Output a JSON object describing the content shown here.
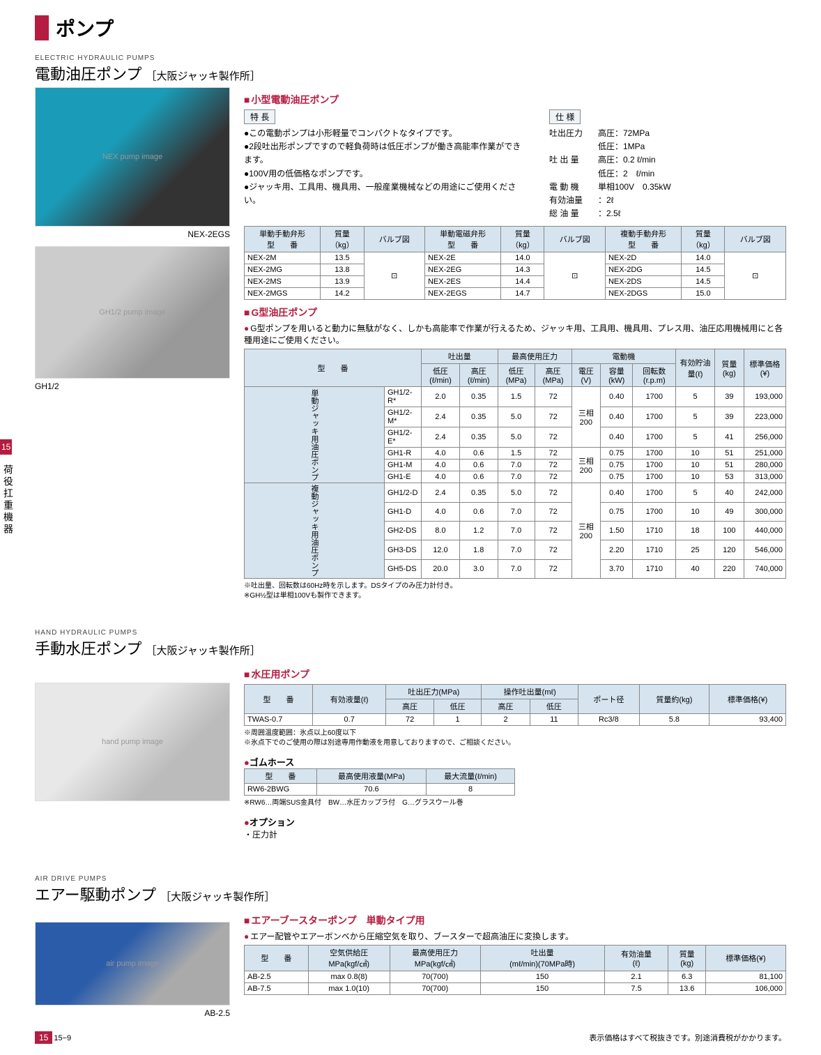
{
  "sideTab": "15",
  "sideLabel": "荷役扛重機器",
  "header": "ポンプ",
  "footer": {
    "page": "15−9",
    "note": "表示価格はすべて税抜きです。別途消費税がかかります。"
  },
  "sections": {
    "electric": {
      "sub": "ELECTRIC HYDRAULIC PUMPS",
      "title": "電動油圧ポンプ",
      "mfr": "［大阪ジャッキ製作所］",
      "img1cap": "NEX-2EGS",
      "img2cap": "GH1/2",
      "small": {
        "hdr": "小型電動油圧ポンプ",
        "featLabel": "特 長",
        "features": [
          "この電動ポンプは小形軽量でコンパクトなタイプです。",
          "2段吐出形ポンプですので軽負荷時は低圧ポンプが働き高能率作業ができます。",
          "100V用の低価格なポンプです。",
          "ジャッキ用、工具用、機具用、一般産業機械などの用途にご使用ください。"
        ],
        "specLabel": "仕 様",
        "specs": [
          {
            "k": "吐出圧力",
            "v": "高圧：72MPa"
          },
          {
            "k": "",
            "v": "低圧：1MPa"
          },
          {
            "k": "吐 出 量",
            "v": "高圧：0.2 ℓ/min"
          },
          {
            "k": "",
            "v": "低圧：2　ℓ/min"
          },
          {
            "k": "電 動 機",
            "v": "単相100V　0.35kW"
          },
          {
            "k": "有効油量",
            "v": "：2ℓ"
          },
          {
            "k": "総 油 量",
            "v": "：2.5ℓ"
          }
        ],
        "tableHeaders": [
          [
            "単動手動弁形",
            "質量",
            "バルブ図",
            "単動電磁弁形",
            "質量",
            "バルブ図",
            "複動手動弁形",
            "質量",
            "バルブ図"
          ],
          [
            "型　　番",
            "（kg）",
            "",
            "型　　番",
            "（kg）",
            "",
            "型　　番",
            "（kg）",
            ""
          ]
        ],
        "tableRows": [
          [
            "NEX-2M",
            "13.5",
            "v1",
            "NEX-2E",
            "14.0",
            "v2",
            "NEX-2D",
            "14.0",
            "v3"
          ],
          [
            "NEX-2MG",
            "13.8",
            "",
            "NEX-2EG",
            "14.3",
            "",
            "NEX-2DG",
            "14.5",
            ""
          ],
          [
            "NEX-2MS",
            "13.9",
            "",
            "NEX-2ES",
            "14.4",
            "",
            "NEX-2DS",
            "14.5",
            ""
          ],
          [
            "NEX-2MGS",
            "14.2",
            "",
            "NEX-2EGS",
            "14.7",
            "",
            "NEX-2DGS",
            "15.0",
            ""
          ]
        ]
      },
      "gtype": {
        "hdr": "G型油圧ポンプ",
        "desc": "G型ポンプを用いると動力に無駄がなく、しかも高能率で作業が行えるため、ジャッキ用、工具用、機具用、プレス用、油圧応用機械用にと各種用途にご使用ください。",
        "headers1": [
          "型　　番",
          "吐出量",
          "最高使用圧力",
          "電動機",
          "有効貯油量(ℓ)",
          "質量(kg)",
          "標準価格(¥)"
        ],
        "headers2": [
          "低圧(ℓ/min)",
          "高圧(ℓ/min)",
          "低圧(MPa)",
          "高圧(MPa)",
          "電圧(V)",
          "容量(kW)",
          "回転数(r.p.m)"
        ],
        "groups": [
          {
            "label": "単動ジャッキ用油圧ポンプ",
            "rows": [
              [
                "GH1/2-R*",
                "2.0",
                "0.35",
                "1.5",
                "72",
                "三相200",
                "0.40",
                "1700",
                "5",
                "39",
                "193,000"
              ],
              [
                "GH1/2-M*",
                "2.4",
                "0.35",
                "5.0",
                "72",
                "",
                "0.40",
                "1700",
                "5",
                "39",
                "223,000"
              ],
              [
                "GH1/2-E*",
                "2.4",
                "0.35",
                "5.0",
                "72",
                "",
                "0.40",
                "1700",
                "5",
                "41",
                "256,000"
              ],
              [
                "GH1-R",
                "4.0",
                "0.6",
                "1.5",
                "72",
                "三相200",
                "0.75",
                "1700",
                "10",
                "51",
                "251,000"
              ],
              [
                "GH1-M",
                "4.0",
                "0.6",
                "7.0",
                "72",
                "",
                "0.75",
                "1700",
                "10",
                "51",
                "280,000"
              ],
              [
                "GH1-E",
                "4.0",
                "0.6",
                "7.0",
                "72",
                "",
                "0.75",
                "1700",
                "10",
                "53",
                "313,000"
              ]
            ]
          },
          {
            "label": "複動ジャッキ用油圧ポンプ",
            "rows": [
              [
                "GH1/2-D",
                "2.4",
                "0.35",
                "5.0",
                "72",
                "三相200",
                "0.40",
                "1700",
                "5",
                "40",
                "242,000"
              ],
              [
                "GH1-D",
                "4.0",
                "0.6",
                "7.0",
                "72",
                "",
                "0.75",
                "1700",
                "10",
                "49",
                "300,000"
              ],
              [
                "GH2-DS",
                "8.0",
                "1.2",
                "7.0",
                "72",
                "",
                "1.50",
                "1710",
                "18",
                "100",
                "440,000"
              ],
              [
                "GH3-DS",
                "12.0",
                "1.8",
                "7.0",
                "72",
                "",
                "2.20",
                "1710",
                "25",
                "120",
                "546,000"
              ],
              [
                "GH5-DS",
                "20.0",
                "3.0",
                "7.0",
                "72",
                "",
                "3.70",
                "1710",
                "40",
                "220",
                "740,000"
              ]
            ]
          }
        ],
        "notes": [
          "吐出量、回転数は60Hz時を示します。DSタイプのみ圧力計付き。",
          "GH½型は単相100Vも製作できます。"
        ]
      }
    },
    "hand": {
      "sub": "HAND HYDRAULIC PUMPS",
      "title": "手動水圧ポンプ",
      "mfr": "［大阪ジャッキ製作所］",
      "water": {
        "hdr": "水圧用ポンプ",
        "headers": [
          "型　　番",
          "有効液量(ℓ)",
          "吐出圧力(MPa)",
          "操作吐出量(mℓ)",
          "ポート径",
          "質量約(kg)",
          "標準価格(¥)"
        ],
        "sub": [
          "",
          "",
          "高圧",
          "低圧",
          "高圧",
          "低圧",
          "",
          "",
          ""
        ],
        "row": [
          "TWAS-0.7",
          "0.7",
          "72",
          "1",
          "2",
          "11",
          "Rc3/8",
          "5.8",
          "93,400"
        ],
        "notes": [
          "周囲温度範囲：氷点以上60度以下",
          "氷点下でのご使用の際は別途専用作動液を用意しておりますので、ご相談ください。"
        ]
      },
      "hose": {
        "hdr": "ゴムホース",
        "headers": [
          "型　　番",
          "最高使用液量(MPa)",
          "最大流量(ℓ/min)"
        ],
        "row": [
          "RW6-2BWG",
          "70.6",
          "8"
        ],
        "note": "RW6…両端SUS金具付　BW…水圧カップラ付　G…グラスウール巻"
      },
      "option": {
        "hdr": "オプション",
        "items": [
          "・圧力計"
        ]
      }
    },
    "air": {
      "sub": "AIR DRIVE PUMPS",
      "title": "エアー駆動ポンプ",
      "mfr": "［大阪ジャッキ製作所］",
      "imgcap": "AB-2.5",
      "booster": {
        "hdr": "エアーブースターポンプ　単動タイプ用",
        "desc": "エアー配管やエアーボンベから圧縮空気を取り、ブースターで超高油圧に変換します。",
        "headers": [
          "型　　番",
          "空気供給圧\nMPa(kgf/㎠)",
          "最高使用圧力\nMPa(kgf/㎠)",
          "吐出量\n(mℓ/min)(70MPa時)",
          "有効油量\n(ℓ)",
          "質量\n(kg)",
          "標準価格(¥)"
        ],
        "rows": [
          [
            "AB-2.5",
            "max 0.8(8)",
            "70(700)",
            "150",
            "2.1",
            "6.3",
            "81,100"
          ],
          [
            "AB-7.5",
            "max 1.0(10)",
            "70(700)",
            "150",
            "7.5",
            "13.6",
            "106,000"
          ]
        ]
      }
    }
  }
}
